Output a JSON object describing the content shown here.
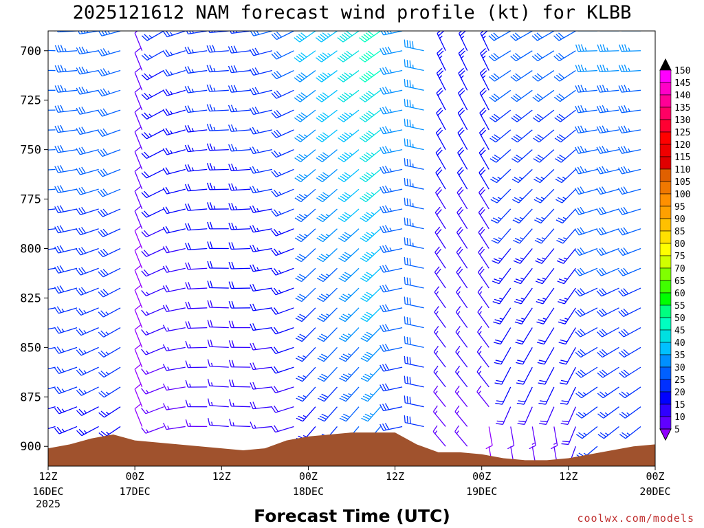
{
  "chart_data": {
    "type": "wind-barb-time-height",
    "title": "2025121612 NAM forecast wind profile (kt) for KLBB",
    "xlabel": "Forecast Time (UTC)",
    "ylabel": "",
    "credit": "coolwx.com/models",
    "y_axis": {
      "range": [
        690,
        910
      ],
      "ticks": [
        700,
        725,
        750,
        775,
        800,
        825,
        850,
        875,
        900
      ],
      "tick_labels": [
        "700",
        "725",
        "750",
        "775",
        "800",
        "825",
        "850",
        "875",
        "900"
      ]
    },
    "x_axis": {
      "range_hours": [
        0,
        84
      ],
      "ticks": [
        {
          "hour": 0,
          "label": "12Z",
          "sub": "16DEC",
          "sub2": "2025"
        },
        {
          "hour": 12,
          "label": "00Z",
          "sub": "17DEC",
          "sub2": ""
        },
        {
          "hour": 24,
          "label": "12Z",
          "sub": "",
          "sub2": ""
        },
        {
          "hour": 36,
          "label": "00Z",
          "sub": "18DEC",
          "sub2": ""
        },
        {
          "hour": 48,
          "label": "12Z",
          "sub": "",
          "sub2": ""
        },
        {
          "hour": 60,
          "label": "00Z",
          "sub": "19DEC",
          "sub2": ""
        },
        {
          "hour": 72,
          "label": "12Z",
          "sub": "",
          "sub2": ""
        },
        {
          "hour": 84,
          "label": "00Z",
          "sub": "20DEC",
          "sub2": ""
        }
      ]
    },
    "surface_pressure": {
      "hours": [
        0,
        3,
        6,
        9,
        12,
        15,
        18,
        21,
        24,
        27,
        30,
        33,
        36,
        39,
        42,
        45,
        48,
        51,
        54,
        57,
        60,
        63,
        66,
        69,
        72,
        75,
        78,
        81,
        84
      ],
      "pressure": [
        901,
        899,
        896,
        894,
        897,
        898,
        899,
        900,
        901,
        902,
        901,
        897,
        895,
        894,
        893,
        893,
        893,
        899,
        903,
        903,
        904,
        906,
        907,
        907,
        906,
        904,
        902,
        900,
        899
      ],
      "color": "#a0522d"
    },
    "wind_barbs": {
      "hour_step": 3,
      "levels": [
        690,
        700,
        710,
        720,
        730,
        740,
        750,
        760,
        770,
        780,
        790,
        800,
        810,
        820,
        830,
        840,
        850,
        860,
        870,
        880,
        890,
        900
      ],
      "description": "Barbs colored by speed (kt); direction from which wind blows in degrees"
    },
    "legend": {
      "type": "colorbar",
      "unit": "kt",
      "labels": [
        "150",
        "145",
        "140",
        "135",
        "130",
        "125",
        "120",
        "115",
        "110",
        "105",
        "100",
        "95",
        "90",
        "85",
        "80",
        "75",
        "70",
        "65",
        "60",
        "55",
        "50",
        "45",
        "40",
        "35",
        "30",
        "25",
        "20",
        "15",
        "10",
        "5"
      ],
      "colors": [
        "#ff00ff",
        "#ff00c8",
        "#ff0096",
        "#ff0064",
        "#ff0032",
        "#ff0000",
        "#f00000",
        "#e00000",
        "#e06000",
        "#f07800",
        "#ff9000",
        "#ffa000",
        "#ffc000",
        "#ffe000",
        "#ffff00",
        "#d0ff00",
        "#80ff00",
        "#40ff00",
        "#00ff00",
        "#00ff80",
        "#00ffc0",
        "#00e0e0",
        "#00c0ff",
        "#0090ff",
        "#0060ff",
        "#0030ff",
        "#0000ff",
        "#3000ff",
        "#6000ff",
        "#9000ff"
      ]
    }
  }
}
